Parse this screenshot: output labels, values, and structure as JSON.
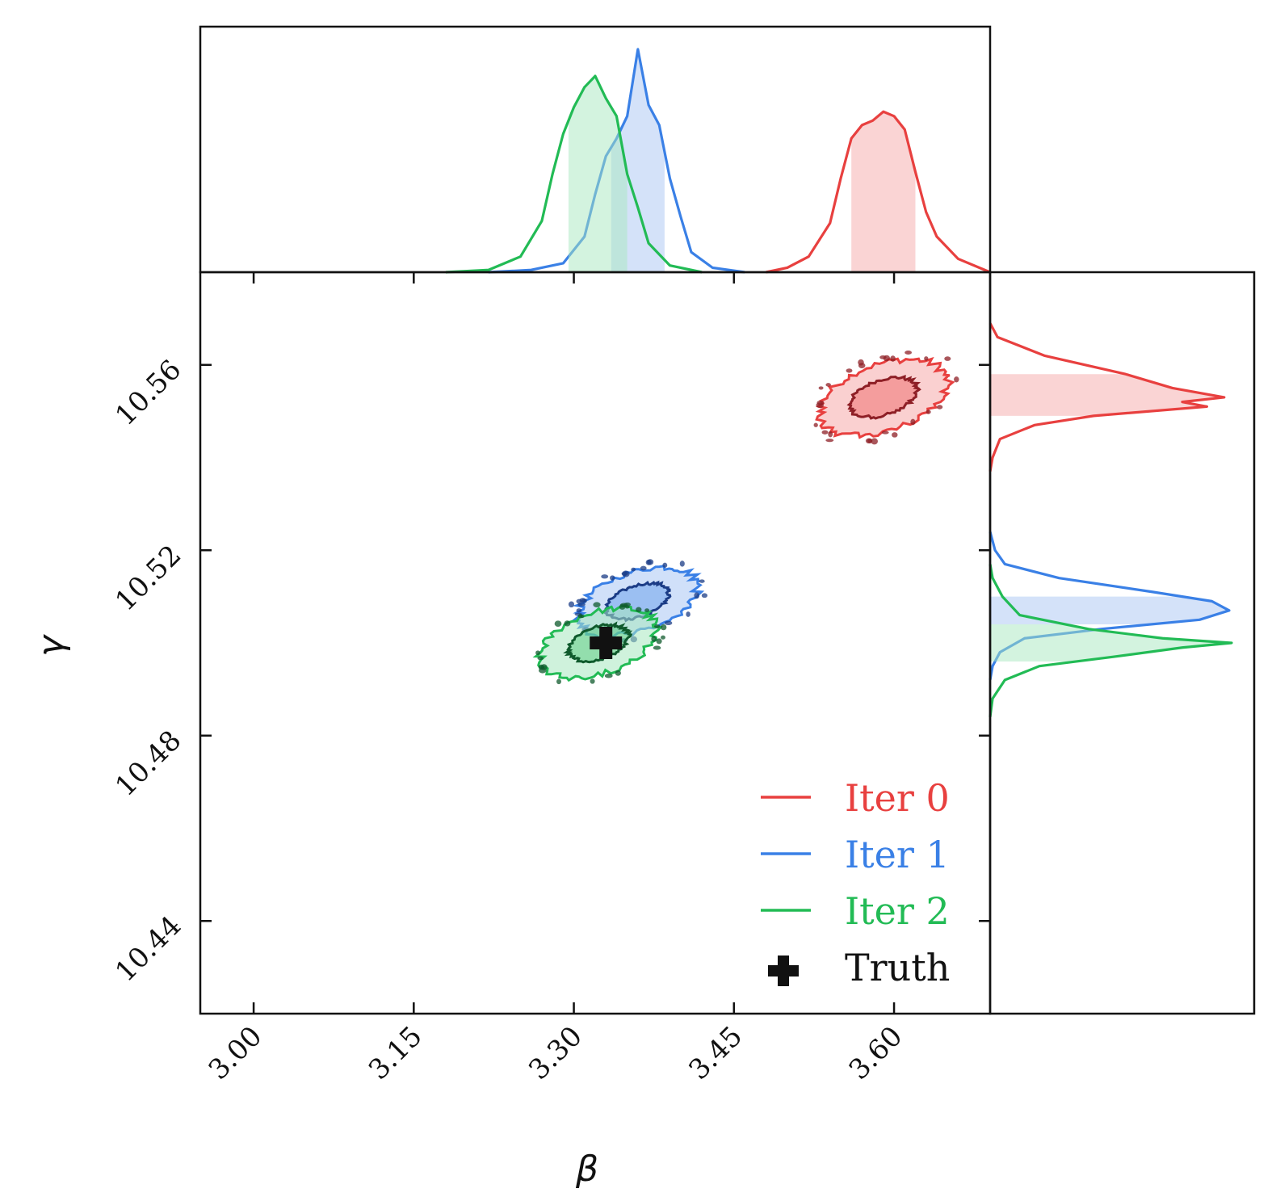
{
  "chart_data": {
    "type": "scatter",
    "title": "",
    "xlabel": "β",
    "ylabel": "γ",
    "xlim": [
      2.95,
      3.69
    ],
    "ylim": [
      10.42,
      10.58
    ],
    "x_ticks": [
      "3.00",
      "3.15",
      "3.30",
      "3.45",
      "3.60"
    ],
    "x_tick_values": [
      3.0,
      3.15,
      3.3,
      3.45,
      3.6
    ],
    "y_ticks": [
      "10.44",
      "10.48",
      "10.52",
      "10.56"
    ],
    "y_tick_values": [
      10.44,
      10.48,
      10.52,
      10.56
    ],
    "series": [
      {
        "name": "Iter 0",
        "color": "#e8403f",
        "fill": "#f5aaaa",
        "dark": "#8e1f26",
        "mean": [
          3.59,
          10.553
        ],
        "sd": [
          0.031,
          0.0036
        ],
        "interval_68_x": [
          3.56,
          3.62
        ],
        "interval_68_y": [
          10.549,
          10.558
        ],
        "beta_marginal": {
          "x": [
            3.48,
            3.5,
            3.52,
            3.54,
            3.55,
            3.56,
            3.57,
            3.58,
            3.59,
            3.6,
            3.61,
            3.62,
            3.63,
            3.64,
            3.66,
            3.68,
            3.69
          ],
          "density": [
            0.0,
            0.02,
            0.07,
            0.22,
            0.42,
            0.6,
            0.66,
            0.68,
            0.72,
            0.7,
            0.64,
            0.45,
            0.27,
            0.16,
            0.06,
            0.02,
            0.0
          ]
        },
        "gamma_marginal": {
          "y": [
            10.569,
            10.566,
            10.562,
            10.558,
            10.555,
            10.553,
            10.552,
            10.551,
            10.549,
            10.547,
            10.544,
            10.54,
            10.537
          ],
          "density": [
            0.0,
            0.03,
            0.22,
            0.55,
            0.74,
            0.95,
            0.78,
            0.88,
            0.42,
            0.18,
            0.04,
            0.01,
            0.0
          ]
        }
      },
      {
        "name": "Iter 1",
        "color": "#3a80e6",
        "fill": "#aac6f4",
        "dark": "#1b3c86",
        "mean": [
          3.36,
          10.509
        ],
        "sd": [
          0.029,
          0.0032
        ],
        "interval_68_x": [
          3.335,
          3.385
        ],
        "interval_68_y": [
          10.504,
          10.51
        ],
        "beta_marginal": {
          "x": [
            3.22,
            3.26,
            3.29,
            3.31,
            3.32,
            3.33,
            3.34,
            3.35,
            3.36,
            3.37,
            3.38,
            3.39,
            3.4,
            3.41,
            3.43,
            3.46
          ],
          "density": [
            0.0,
            0.01,
            0.04,
            0.16,
            0.35,
            0.52,
            0.6,
            0.7,
            1.0,
            0.75,
            0.66,
            0.42,
            0.25,
            0.09,
            0.02,
            0.0
          ]
        },
        "gamma_marginal": {
          "y": [
            10.524,
            10.52,
            10.517,
            10.514,
            10.511,
            10.509,
            10.507,
            10.505,
            10.503,
            10.501,
            10.498,
            10.495,
            10.492
          ],
          "density": [
            0.0,
            0.02,
            0.06,
            0.28,
            0.66,
            0.9,
            0.97,
            0.85,
            0.45,
            0.14,
            0.04,
            0.01,
            0.0
          ]
        }
      },
      {
        "name": "Iter 2",
        "color": "#22bb55",
        "fill": "#a8e8bf",
        "dark": "#0f5a2c",
        "mean": [
          3.323,
          10.5
        ],
        "sd": [
          0.028,
          0.0033
        ],
        "interval_68_x": [
          3.295,
          3.35
        ],
        "interval_68_y": [
          10.496,
          10.504
        ],
        "beta_marginal": {
          "x": [
            3.18,
            3.22,
            3.25,
            3.27,
            3.28,
            3.29,
            3.3,
            3.31,
            3.32,
            3.33,
            3.34,
            3.35,
            3.36,
            3.37,
            3.39,
            3.42
          ],
          "density": [
            0.0,
            0.01,
            0.07,
            0.23,
            0.44,
            0.62,
            0.74,
            0.83,
            0.88,
            0.78,
            0.7,
            0.44,
            0.29,
            0.13,
            0.03,
            0.0
          ]
        },
        "gamma_marginal": {
          "y": [
            10.517,
            10.514,
            10.51,
            10.506,
            10.503,
            10.501,
            10.5,
            10.499,
            10.497,
            10.495,
            10.492,
            10.488,
            10.484
          ],
          "density": [
            0.0,
            0.01,
            0.05,
            0.12,
            0.4,
            0.7,
            0.98,
            0.78,
            0.5,
            0.2,
            0.06,
            0.01,
            0.0
          ]
        }
      }
    ],
    "truth": {
      "name": "Truth",
      "x": 3.33,
      "y": 10.5,
      "color": "#111111"
    },
    "legend": {
      "position": "lower-right",
      "entries": [
        "Iter 0",
        "Iter 1",
        "Iter 2",
        "Truth"
      ]
    }
  }
}
